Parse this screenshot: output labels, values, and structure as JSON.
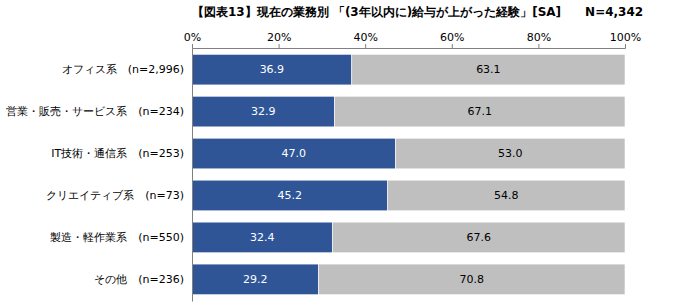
{
  "chart_data": {
    "type": "bar",
    "orientation": "horizontal",
    "stacked": true,
    "data_labels": true,
    "grid": false,
    "title": "【図表13】現在の業務別 「(3年以内に)給与が上がった経験」[SA]　　N=4,342",
    "categories": [
      "オフィス系　(n=2,996)",
      "営業・販売・サービス系　(n=234)",
      "IT技術・通信系　(n=253)",
      "クリエイティブ系　(n=73)",
      "製造・軽作業系　(n=550)",
      "その他　(n=236)"
    ],
    "xlim": [
      0,
      100
    ],
    "xticks": [
      {
        "value": 0,
        "label": "0%"
      },
      {
        "value": 20,
        "label": "20%"
      },
      {
        "value": 40,
        "label": "40%"
      },
      {
        "value": 60,
        "label": "60%"
      },
      {
        "value": 80,
        "label": "80%"
      },
      {
        "value": 100,
        "label": "100%"
      }
    ],
    "series": [
      {
        "color": "#2f5597",
        "values": [
          36.9,
          32.9,
          47.0,
          45.2,
          32.4,
          29.2
        ],
        "value_labels": [
          "36.9",
          "32.9",
          "47.0",
          "45.2",
          "32.4",
          "29.2"
        ]
      },
      {
        "color": "#bfbfbf",
        "values": [
          63.1,
          67.1,
          53.0,
          54.8,
          67.6,
          70.8
        ],
        "value_labels": [
          "63.1",
          "67.1",
          "53.0",
          "54.8",
          "67.6",
          "70.8"
        ]
      }
    ]
  }
}
